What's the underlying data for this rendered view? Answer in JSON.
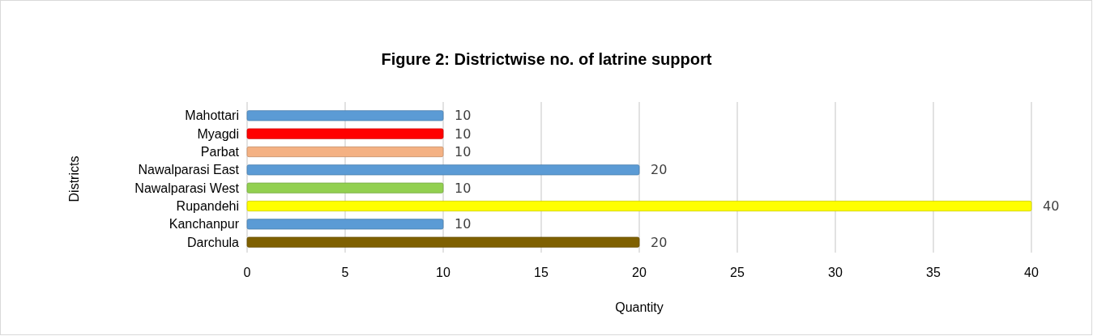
{
  "chart_data": {
    "type": "bar",
    "orientation": "horizontal",
    "title": "Figure 2: Districtwise no. of latrine support",
    "xlabel": "Quantity",
    "ylabel": "Districts",
    "categories": [
      "Mahottari",
      "Myagdi",
      "Parbat",
      "Nawalparasi East",
      "Nawalparasi West",
      "Rupandehi",
      "Kanchanpur",
      "Darchula"
    ],
    "values": [
      10,
      10,
      10,
      20,
      10,
      40,
      10,
      20
    ],
    "colors": [
      "#5b9bd5",
      "#ff0000",
      "#f4b183",
      "#5b9bd5",
      "#92d050",
      "#ffff00",
      "#5b9bd5",
      "#7f6000"
    ],
    "xlim": [
      0,
      40
    ],
    "xticks": [
      0,
      5,
      10,
      15,
      20,
      25,
      30,
      35,
      40
    ],
    "grid": "x",
    "data_labels": true
  }
}
